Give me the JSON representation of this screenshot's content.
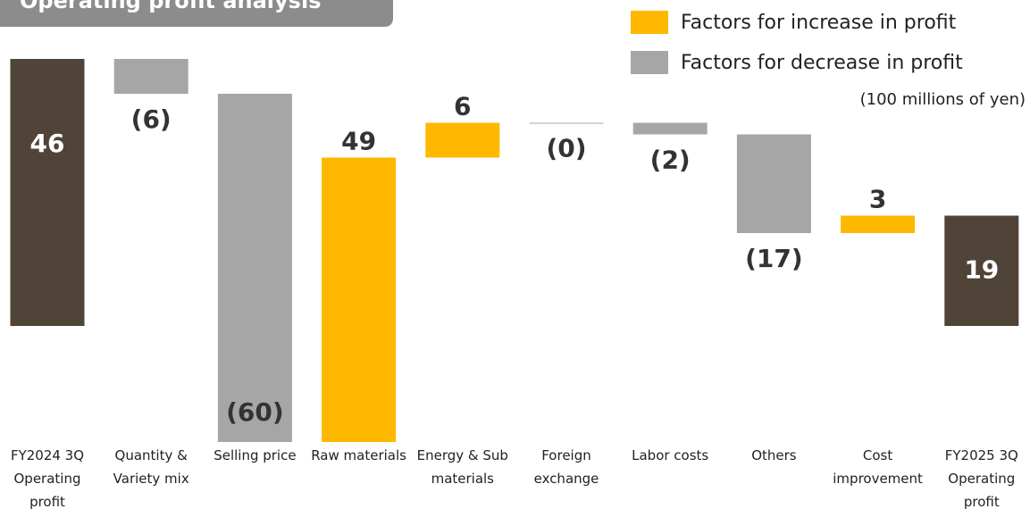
{
  "chart_data": {
    "type": "waterfall",
    "title": "Operating profit analysis",
    "unit_note": "(100 millions of yen)",
    "categories": [
      "FY2024 3Q Operating profit",
      "Quantity & Variety mix",
      "Selling price",
      "Raw materials",
      "Energy & Sub materials",
      "Foreign exchange",
      "Labor costs",
      "Others",
      "Cost improvement",
      "FY2025 3Q Operating profit"
    ],
    "values": [
      46,
      -6,
      -60,
      49,
      6,
      0,
      -2,
      -17,
      3,
      19
    ],
    "value_labels": [
      "46",
      "(6)",
      "(60)",
      "49",
      "6",
      "(0)",
      "(2)",
      "(17)",
      "3",
      "19"
    ],
    "total_color": "#504337",
    "legend": [
      {
        "name": "Factors for increase in profit",
        "color": "#FFB800"
      },
      {
        "name": "Factors for decrease in profit",
        "color": "#A6A6A6"
      }
    ]
  }
}
